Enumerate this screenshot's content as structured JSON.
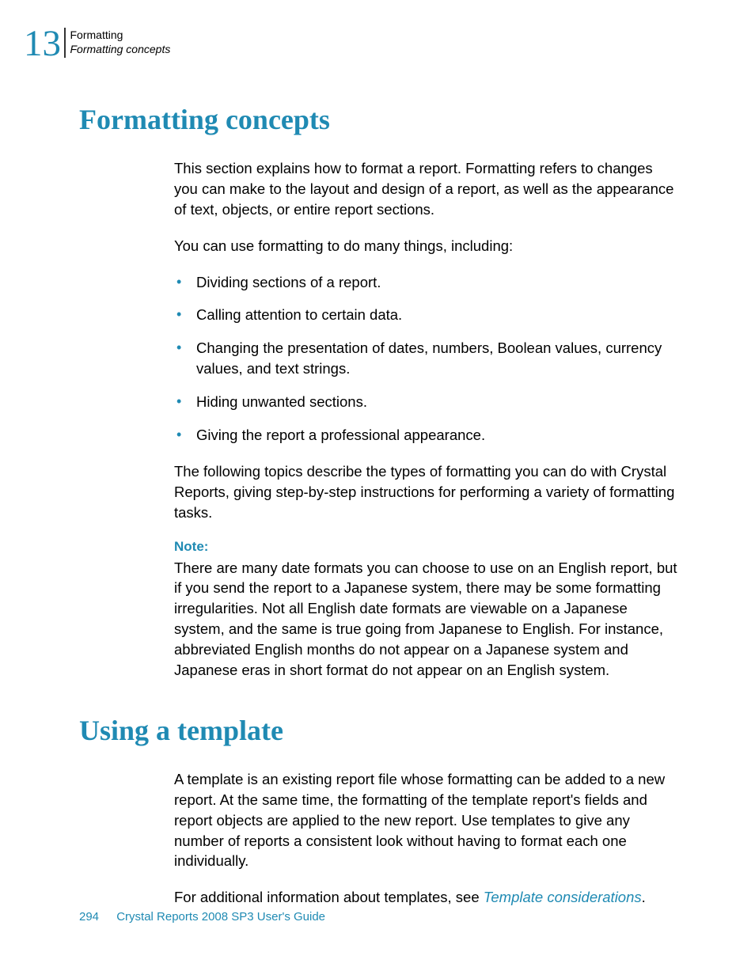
{
  "header": {
    "chapter_number": "13",
    "category": "Formatting",
    "subcategory": "Formatting concepts"
  },
  "section1": {
    "heading": "Formatting concepts",
    "para1": "This section explains how to format a report. Formatting refers to changes you can make to the layout and design of a report, as well as the appearance of text, objects, or entire report sections.",
    "para2": "You can use formatting to do many things, including:",
    "bullets": {
      "item1": "Dividing sections of a report.",
      "item2": "Calling attention to certain data.",
      "item3": "Changing the presentation of dates, numbers, Boolean values, currency values, and text strings.",
      "item4": "Hiding unwanted sections.",
      "item5": "Giving the report a professional appearance."
    },
    "para3": "The following topics describe the types of formatting you can do with Crystal Reports, giving step-by-step instructions for performing a variety of formatting tasks.",
    "note_label": "Note:",
    "note_text": "There are many date formats you can choose to use on an English report, but if you send the report to a Japanese system, there may be some formatting irregularities. Not all English date formats are viewable on a Japanese system, and the same is true going from Japanese to English. For instance, abbreviated English months do not appear on a Japanese system and Japanese eras in short format do not appear on an English system."
  },
  "section2": {
    "heading": "Using a template",
    "para1": "A template is an existing report file whose formatting can be added to a new report. At the same time, the formatting of the template report's fields and report objects are applied to the new report. Use templates to give any number of reports a consistent look without having to format each one individually.",
    "para2_prefix": "For additional information about templates, see ",
    "para2_link": "Template considerations",
    "para2_suffix": "."
  },
  "footer": {
    "page_number": "294",
    "title": "Crystal Reports 2008 SP3 User's Guide"
  },
  "colors": {
    "accent": "#1f8ab3",
    "text": "#000000",
    "background": "#ffffff"
  }
}
